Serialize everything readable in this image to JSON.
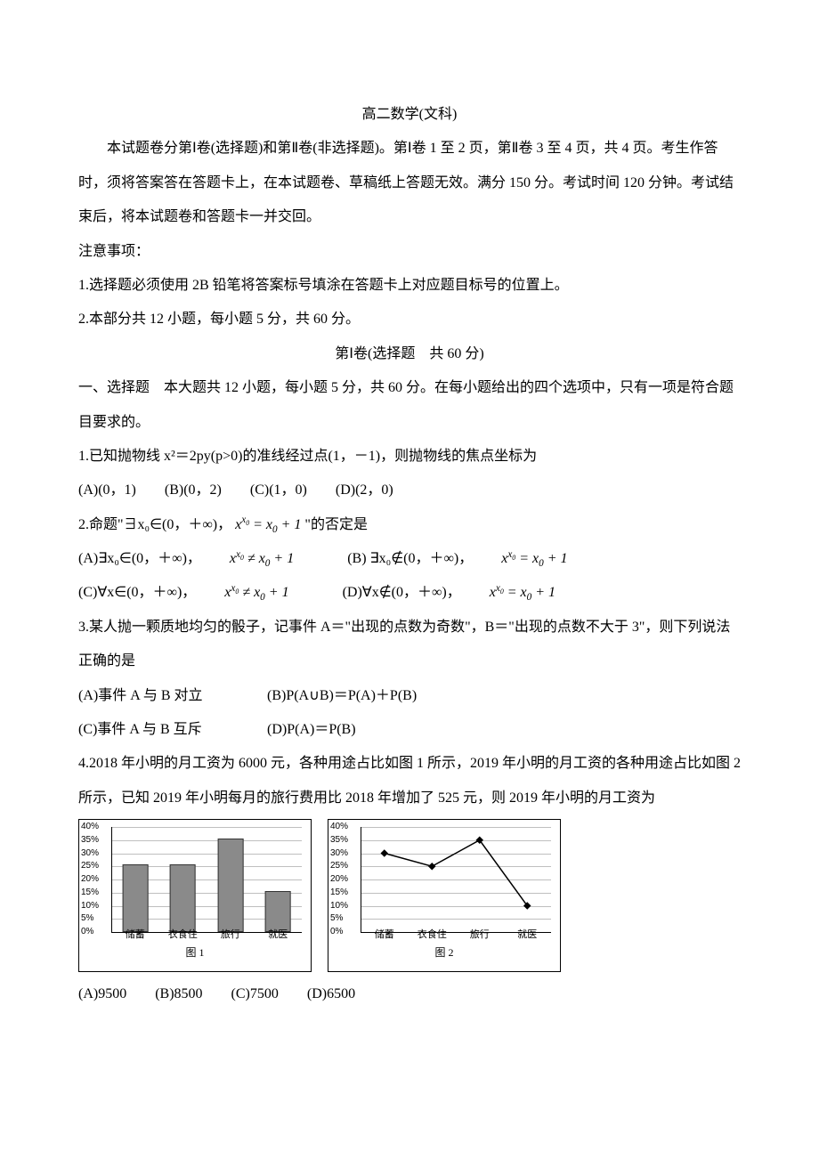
{
  "title": "高二数学(文科)",
  "intro1": "本试题卷分第Ⅰ卷(选择题)和第Ⅱ卷(非选择题)。第Ⅰ卷 1 至 2 页，第Ⅱ卷 3 至 4 页，共 4 页。考生作答时，须将答案答在答题卡上，在本试题卷、草稿纸上答题无效。满分 150 分。考试时间 120 分钟。考试结束后，将本试题卷和答题卡一并交回。",
  "notes_label": "注意事项：",
  "note1": "1.选择题必须使用 2B 铅笔将答案标号填涂在答题卡上对应题目标号的位置上。",
  "note2": "2.本部分共 12 小题，每小题 5 分，共 60 分。",
  "section1": "第Ⅰ卷(选择题　共 60 分)",
  "part1": "一、选择题　本大题共 12 小题，每小题 5 分，共 60 分。在每小题给出的四个选项中，只有一项是符合题目要求的。",
  "q1": {
    "stem": "1.已知抛物线 x²＝2py(p>0)的准线经过点(1，－1)，则抛物线的焦点坐标为",
    "a": "(A)(0，1)",
    "b": "(B)(0，2)",
    "c": "(C)(1，0)",
    "d": "(D)(2，0)"
  },
  "q2": {
    "stem_pre": "2.命题\"∃x₀∈(0，＋∞)，",
    "stem_expr": "x^{x_0} = x_0 + 1",
    "stem_post": "\"的否定是",
    "a_pre": "(A)∃x₀∈(0，＋∞)，",
    "a_expr": "x^{x_0} ≠ x_0 + 1",
    "b_pre": "(B) ∃x₀∉(0，＋∞)，",
    "b_expr": "x^{x_0} = x_0 + 1",
    "c_pre": "(C)∀x∈(0，＋∞)，",
    "c_expr": "x^{x_0} ≠ x_0 + 1",
    "d_pre": "(D)∀x∉(0，＋∞)，",
    "d_expr": "x^{x_0} = x_0 + 1"
  },
  "q3": {
    "stem": "3.某人抛一颗质地均匀的骰子，记事件 A＝\"出现的点数为奇数\"，B＝\"出现的点数不大于 3\"，则下列说法正确的是",
    "a": "(A)事件 A 与 B 对立",
    "b": "(B)P(A∪B)＝P(A)＋P(B)",
    "c": "(C)事件 A 与 B 互斥",
    "d": "(D)P(A)＝P(B)"
  },
  "q4": {
    "stem": "4.2018 年小明的月工资为 6000 元，各种用途占比如图 1 所示，2019 年小明的月工资的各种用途占比如图 2 所示，已知 2019 年小明每月的旅行费用比 2018 年增加了 525 元，则 2019 年小明的月工资为",
    "a": "(A)9500",
    "b": "(B)8500",
    "c": "(C)7500",
    "d": "(D)6500"
  },
  "chart1": {
    "type": "bar",
    "label": "图 1",
    "categories": [
      "储蓄",
      "衣食住",
      "旅行",
      "就医"
    ],
    "values": [
      25,
      25,
      35,
      15
    ],
    "ylim": [
      0,
      40
    ],
    "ytick_step": 5,
    "yticks": [
      "0%",
      "5%",
      "10%",
      "15%",
      "20%",
      "25%",
      "30%",
      "35%",
      "40%"
    ],
    "bar_color": "#8a8a8a",
    "grid_color": "#bfbfbf",
    "axis_color": "#000000",
    "background": "#ffffff",
    "bar_width_ratio": 0.5
  },
  "chart2": {
    "type": "line",
    "label": "图 2",
    "categories": [
      "储蓄",
      "衣食住",
      "旅行",
      "就医"
    ],
    "values": [
      30,
      25,
      35,
      10
    ],
    "ylim": [
      0,
      40
    ],
    "ytick_step": 5,
    "yticks": [
      "0%",
      "5%",
      "10%",
      "15%",
      "20%",
      "25%",
      "30%",
      "35%",
      "40%"
    ],
    "line_color": "#000000",
    "grid_color": "#bfbfbf",
    "axis_color": "#000000",
    "background": "#ffffff",
    "marker": "diamond"
  }
}
